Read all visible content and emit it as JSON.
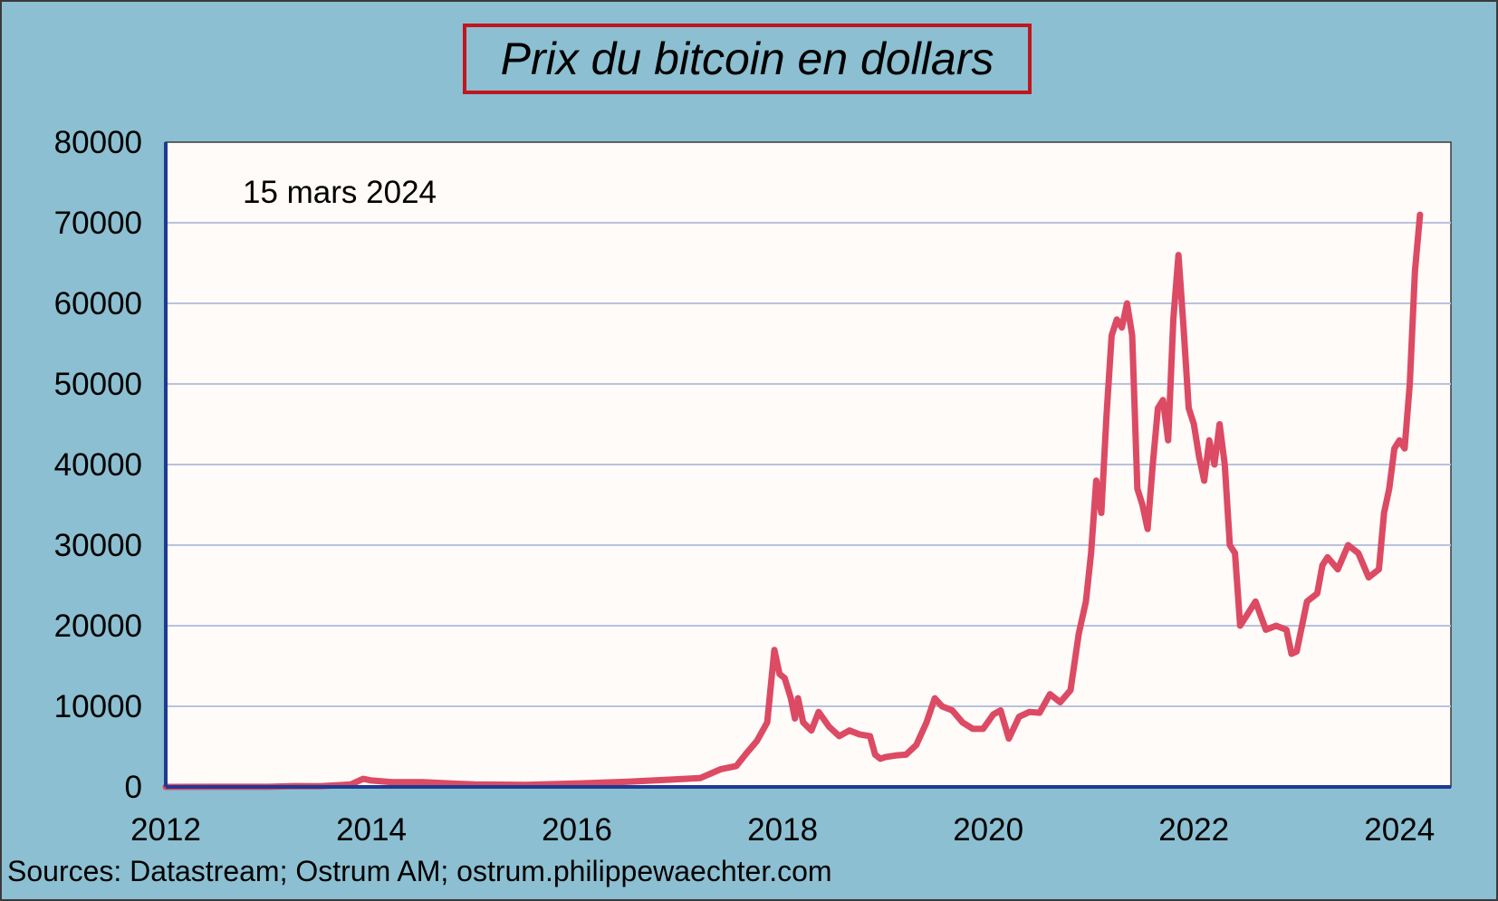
{
  "chart_data": {
    "type": "line",
    "title": "Prix du bitcoin en dollars",
    "annotation": "15 mars 2024",
    "source": "Sources: Datastream; Ostrum AM; ostrum.philippewaechter.com",
    "xlim": [
      2012,
      2024.5
    ],
    "ylim": [
      0,
      80000
    ],
    "x_ticks": [
      2012,
      2014,
      2016,
      2018,
      2020,
      2022,
      2024
    ],
    "x_tick_labels": [
      "2012",
      "2014",
      "2016",
      "2018",
      "2020",
      "2022",
      "2024"
    ],
    "y_ticks": [
      0,
      10000,
      20000,
      30000,
      40000,
      50000,
      60000,
      70000,
      80000
    ],
    "y_tick_labels": [
      "0",
      "10000",
      "20000",
      "30000",
      "40000",
      "50000",
      "60000",
      "70000",
      "80000"
    ],
    "grid": true,
    "colors": {
      "line": "#dc4a64",
      "axis": "#1f3a93",
      "grid": "#b8c2dc",
      "plot_bg": "#fffbf8",
      "frame_bg": "#8bbfd1",
      "title_border": "#c0161f"
    },
    "series": [
      {
        "x": [
          2012.0,
          2012.5,
          2013.0,
          2013.25,
          2013.5,
          2013.8,
          2013.92,
          2014.0,
          2014.2,
          2014.5,
          2014.8,
          2015.0,
          2015.5,
          2016.0,
          2016.5,
          2016.9,
          2017.2,
          2017.4,
          2017.55,
          2017.65,
          2017.75,
          2017.85,
          2017.92,
          2017.97,
          2018.02,
          2018.08,
          2018.12,
          2018.15,
          2018.2,
          2018.28,
          2018.35,
          2018.45,
          2018.55,
          2018.65,
          2018.75,
          2018.85,
          2018.9,
          2018.95,
          2019.0,
          2019.1,
          2019.2,
          2019.3,
          2019.4,
          2019.48,
          2019.55,
          2019.65,
          2019.75,
          2019.85,
          2019.95,
          2020.05,
          2020.12,
          2020.2,
          2020.3,
          2020.4,
          2020.5,
          2020.6,
          2020.7,
          2020.8,
          2020.88,
          2020.95,
          2021.0,
          2021.05,
          2021.1,
          2021.15,
          2021.2,
          2021.25,
          2021.3,
          2021.35,
          2021.4,
          2021.45,
          2021.5,
          2021.55,
          2021.6,
          2021.65,
          2021.7,
          2021.75,
          2021.8,
          2021.85,
          2021.9,
          2021.95,
          2022.0,
          2022.05,
          2022.1,
          2022.15,
          2022.2,
          2022.25,
          2022.3,
          2022.35,
          2022.4,
          2022.45,
          2022.5,
          2022.6,
          2022.7,
          2022.8,
          2022.9,
          2022.95,
          2023.0,
          2023.1,
          2023.2,
          2023.25,
          2023.3,
          2023.4,
          2023.5,
          2023.6,
          2023.7,
          2023.8,
          2023.85,
          2023.9,
          2023.95,
          2024.0,
          2024.05,
          2024.1,
          2024.15,
          2024.2
        ],
        "y": [
          5,
          7,
          13,
          100,
          90,
          300,
          1000,
          800,
          600,
          600,
          400,
          300,
          250,
          430,
          650,
          900,
          1100,
          2200,
          2600,
          4200,
          5700,
          8000,
          17000,
          14000,
          13500,
          11000,
          8500,
          11000,
          8000,
          7000,
          9300,
          7500,
          6300,
          7000,
          6500,
          6300,
          4000,
          3500,
          3700,
          3900,
          4000,
          5200,
          8000,
          11000,
          10000,
          9500,
          8000,
          7200,
          7200,
          9000,
          9500,
          6000,
          8700,
          9300,
          9200,
          11500,
          10500,
          12000,
          19000,
          23000,
          29000,
          38000,
          34000,
          46000,
          56000,
          58000,
          57000,
          60000,
          56000,
          37000,
          35000,
          32000,
          40000,
          47000,
          48000,
          43000,
          58000,
          66000,
          57000,
          47000,
          45000,
          41000,
          38000,
          43000,
          40000,
          45000,
          40000,
          30000,
          29000,
          20000,
          21000,
          23000,
          19500,
          20000,
          19500,
          16500,
          16800,
          23000,
          24000,
          27500,
          28500,
          27000,
          30000,
          29000,
          26000,
          27000,
          34000,
          37000,
          42000,
          43000,
          42000,
          50000,
          64000,
          71000
        ]
      }
    ]
  }
}
